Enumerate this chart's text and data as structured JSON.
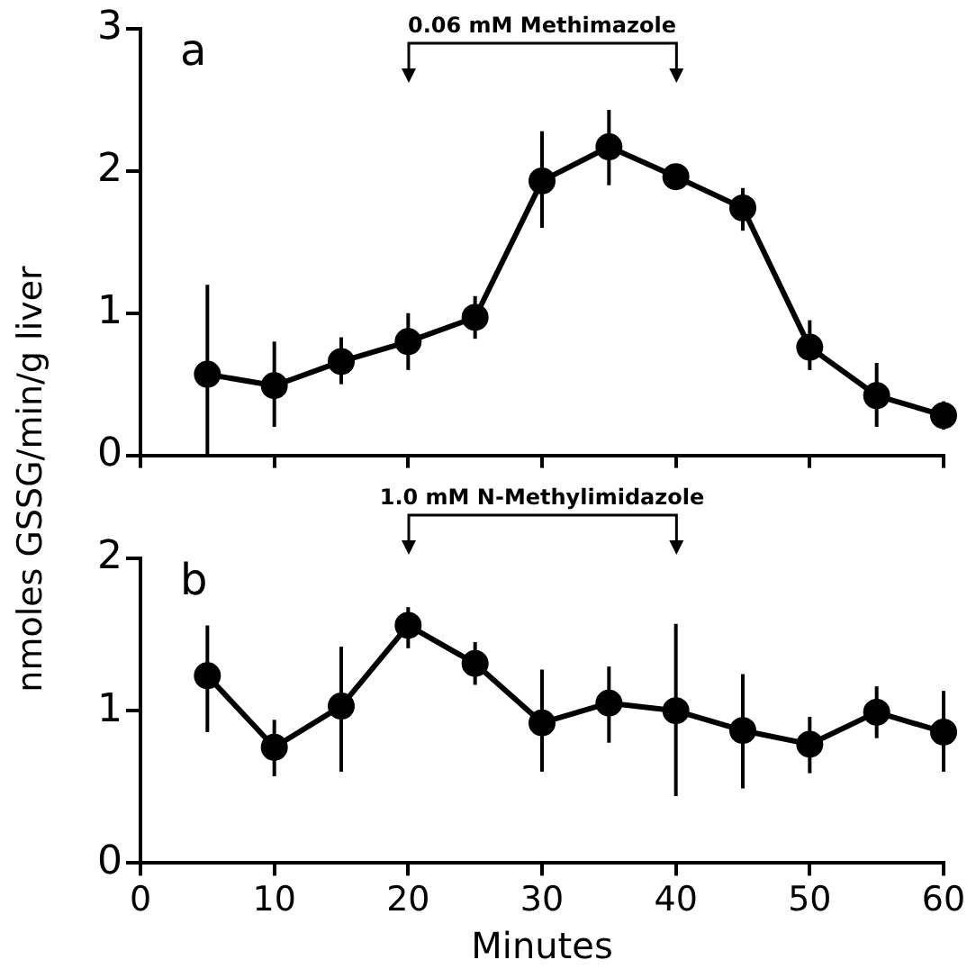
{
  "chart_data": [
    {
      "type": "line",
      "ylabel": "nmoles GSSG/min/g liver",
      "annotations": [
        "a",
        "0.06 mM Methimazole"
      ],
      "x": [
        5,
        10,
        15,
        20,
        25,
        30,
        35,
        40,
        45,
        50,
        55,
        60
      ],
      "series": [
        {
          "color": "#000000",
          "values": [
            0.57,
            0.49,
            0.66,
            0.8,
            0.97,
            1.93,
            2.17,
            1.96,
            1.74,
            0.76,
            0.42,
            0.28
          ],
          "errors": [
            [
              0,
              1.2
            ],
            [
              0.2,
              0.8
            ],
            [
              0.5,
              0.83
            ],
            [
              0.6,
              1.0
            ],
            [
              0.82,
              1.12
            ],
            [
              1.6,
              2.28
            ],
            [
              1.9,
              2.43
            ],
            null,
            [
              1.58,
              1.88
            ],
            [
              0.6,
              0.95
            ],
            [
              0.2,
              0.65
            ],
            [
              0.18,
              0.38
            ]
          ]
        }
      ],
      "xlim": [
        0,
        60
      ],
      "xticks": [
        0,
        10,
        20,
        30,
        40,
        50,
        60
      ],
      "ylim": [
        0,
        3
      ],
      "yticks": [
        0,
        1,
        2,
        3
      ],
      "tick_labels": "y",
      "marker": "circle",
      "line_style": "solid",
      "grid": false,
      "legend": false
    },
    {
      "type": "line",
      "xlabel": "Minutes",
      "annotations": [
        "b",
        "1.0 mM N-Methylimidazole"
      ],
      "x": [
        5,
        10,
        15,
        20,
        25,
        30,
        35,
        40,
        45,
        50,
        55,
        60
      ],
      "series": [
        {
          "color": "#000000",
          "values": [
            1.23,
            0.76,
            1.03,
            1.56,
            1.31,
            0.92,
            1.05,
            1.0,
            0.87,
            0.78,
            0.99,
            0.86
          ],
          "errors": [
            [
              0.86,
              1.56
            ],
            [
              0.57,
              0.94
            ],
            [
              0.6,
              1.42
            ],
            [
              1.41,
              1.68
            ],
            [
              1.17,
              1.45
            ],
            [
              0.6,
              1.27
            ],
            [
              0.79,
              1.29
            ],
            [
              0.44,
              1.57
            ],
            [
              0.49,
              1.24
            ],
            [
              0.59,
              0.96
            ],
            [
              0.82,
              1.16
            ],
            [
              0.6,
              1.13
            ]
          ]
        }
      ],
      "xlim": [
        0,
        60
      ],
      "xticks": [
        0,
        10,
        20,
        30,
        40,
        50,
        60
      ],
      "ylim": [
        0,
        2
      ],
      "yticks": [
        0,
        1,
        2
      ],
      "marker": "circle",
      "line_style": "solid",
      "grid": false,
      "legend": false
    }
  ]
}
